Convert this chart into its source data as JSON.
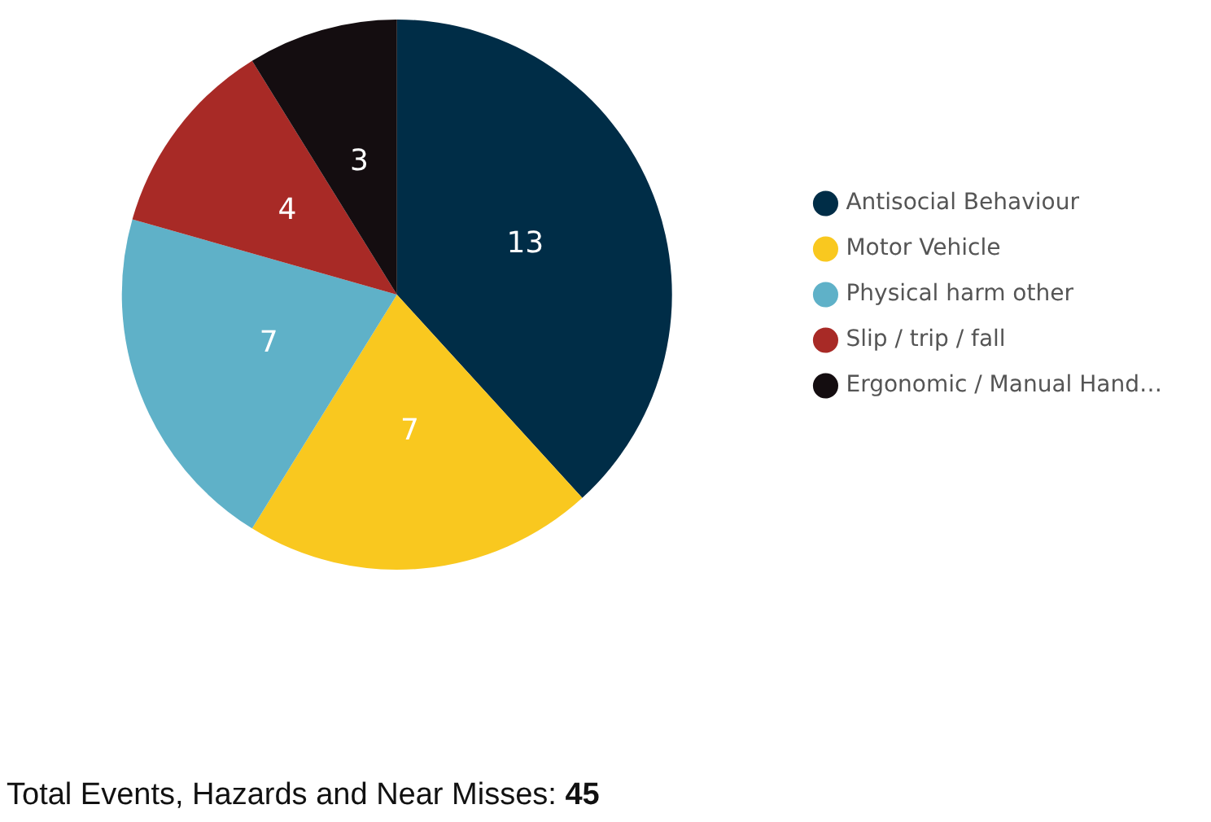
{
  "chart_data": {
    "type": "pie",
    "categories": [
      "Antisocial Behaviour",
      "Motor Vehicle",
      "Physical harm other",
      "Slip / trip / fall",
      "Ergonomic / Manual Hand…"
    ],
    "values": [
      13,
      7,
      7,
      4,
      3
    ],
    "colors": [
      "#002d47",
      "#f9c81f",
      "#5fb1c8",
      "#a82a26",
      "#140d10"
    ],
    "data_labels": true,
    "legend": "right",
    "annotations": [
      "Total Events, Hazards and Near Misses: 45"
    ]
  }
}
